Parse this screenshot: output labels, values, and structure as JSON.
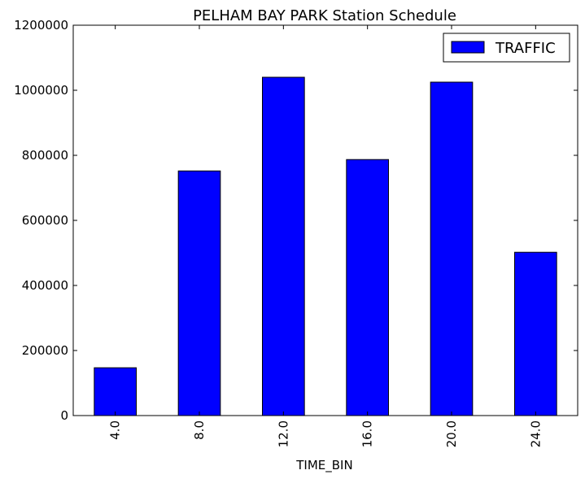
{
  "chart_data": {
    "type": "bar",
    "title": "PELHAM BAY PARK Station Schedule",
    "xlabel": "TIME_BIN",
    "ylabel": "",
    "categories": [
      "4.0",
      "8.0",
      "12.0",
      "16.0",
      "20.0",
      "24.0"
    ],
    "series": [
      {
        "name": "TRAFFIC",
        "values": [
          147000,
          752000,
          1040000,
          787000,
          1025000,
          502000
        ],
        "color": "#0000ff"
      }
    ],
    "ylim": [
      0,
      1200000
    ],
    "yticks": [
      0,
      200000,
      400000,
      600000,
      800000,
      1000000,
      1200000
    ],
    "ytick_labels": [
      "0",
      "200000",
      "400000",
      "600000",
      "800000",
      "1000000",
      "1200000"
    ],
    "grid": false,
    "legend_position": "top-right",
    "bar_edge_color": "#000000"
  }
}
